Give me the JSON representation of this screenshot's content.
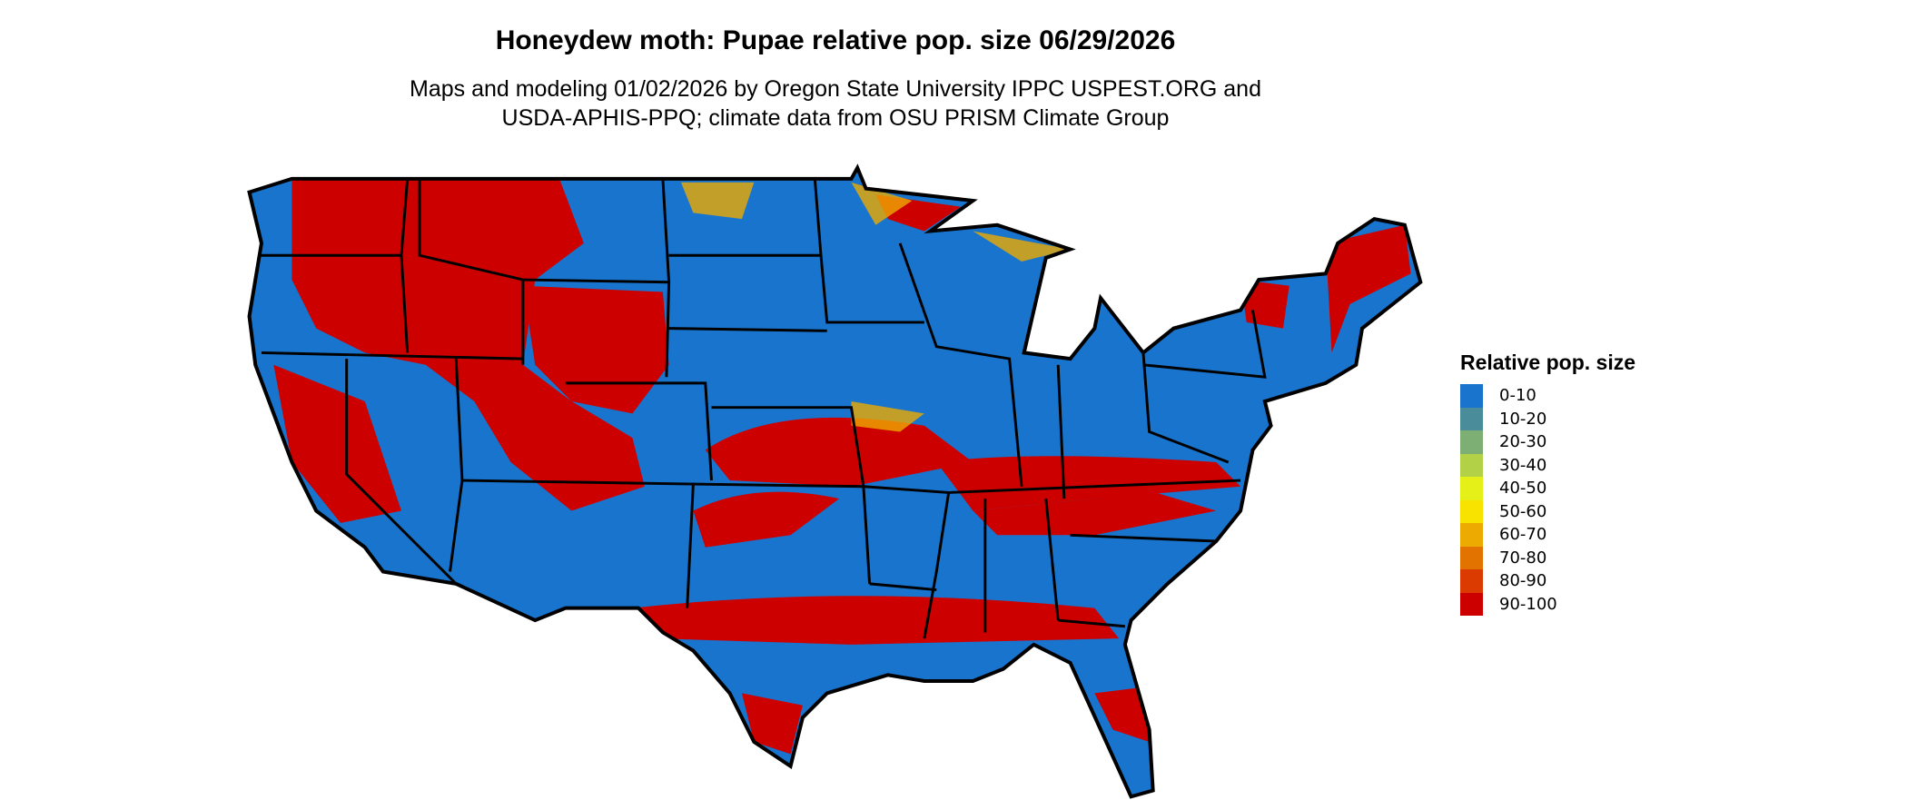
{
  "title": "Honeydew moth: Pupae relative pop. size 06/29/2026",
  "subtitle_line1": "Maps and modeling 01/02/2026 by Oregon State University IPPC USPEST.ORG and",
  "subtitle_line2": "USDA-APHIS-PPQ; climate data from OSU PRISM Climate Group",
  "legend": {
    "title": "Relative pop. size",
    "items": [
      {
        "label": "0-10",
        "color": "#1874CD"
      },
      {
        "label": "10-20",
        "color": "#4A8C9A"
      },
      {
        "label": "20-30",
        "color": "#7DAF74"
      },
      {
        "label": "30-40",
        "color": "#B3D147"
      },
      {
        "label": "40-50",
        "color": "#E5F019"
      },
      {
        "label": "50-60",
        "color": "#F8E300"
      },
      {
        "label": "60-70",
        "color": "#EDAA00"
      },
      {
        "label": "70-80",
        "color": "#E27300"
      },
      {
        "label": "80-90",
        "color": "#DB3A00"
      },
      {
        "label": "90-100",
        "color": "#CD0000"
      }
    ]
  },
  "map": {
    "region": "contiguous United States",
    "base_color": "#1874CD",
    "high_color": "#CD0000",
    "border_color": "#000000"
  }
}
